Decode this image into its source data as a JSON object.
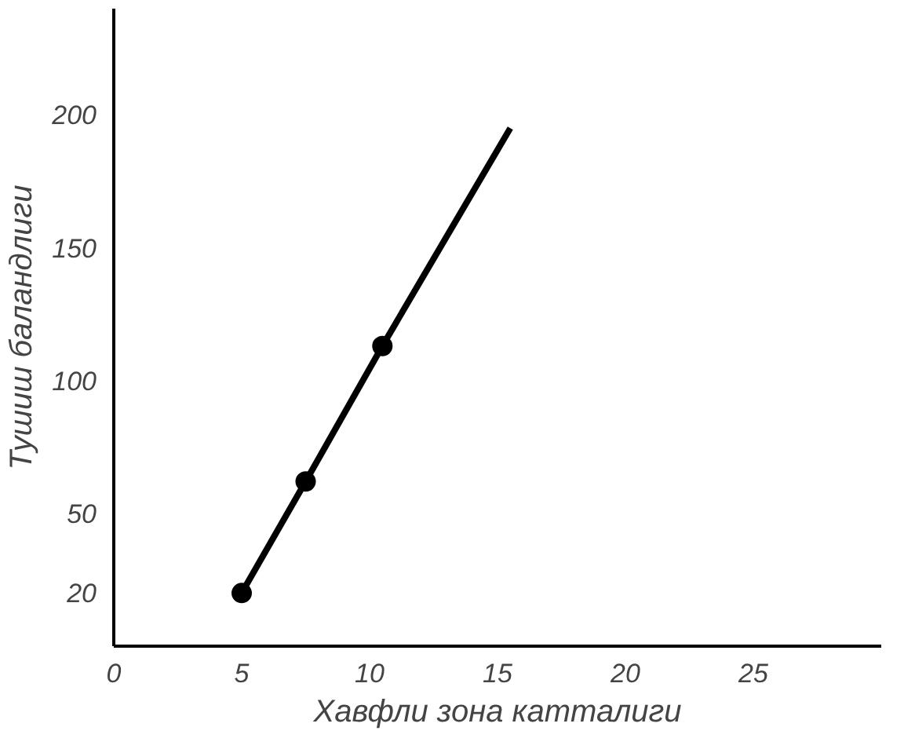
{
  "chart_data": {
    "type": "line",
    "xlabel": "Хавфли зона катталиги",
    "ylabel": "Тушиш баландлиги",
    "xlim": [
      0,
      30
    ],
    "ylim": [
      0,
      240
    ],
    "xticks": [
      0,
      5,
      10,
      15,
      20,
      25
    ],
    "yticks": [
      20,
      50,
      100,
      150,
      200
    ],
    "grid": false,
    "series": [
      {
        "color": "#000000",
        "marker": "none",
        "x": [
          5,
          7.5,
          10.5,
          15.5
        ],
        "values": [
          20,
          62,
          113,
          195
        ]
      },
      {
        "type": "scatter",
        "color": "#000000",
        "marker": "circle",
        "x": [
          5,
          7.5,
          10.5
        ],
        "values": [
          20,
          62,
          113
        ]
      }
    ]
  }
}
